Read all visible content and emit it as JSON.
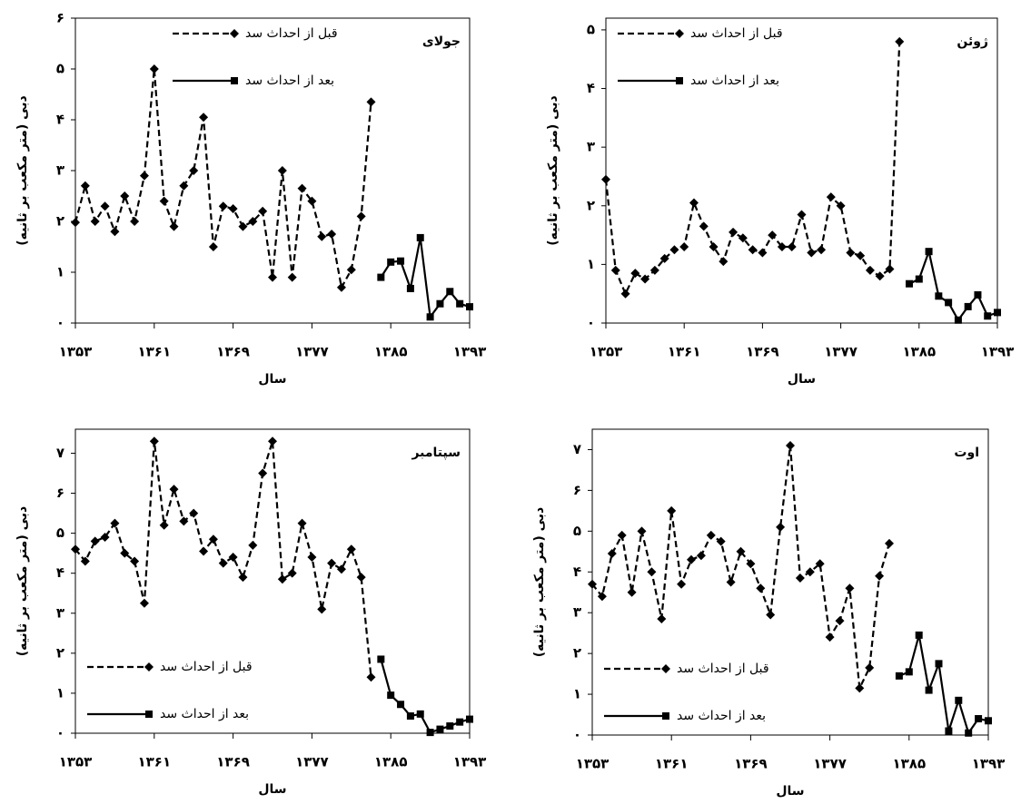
{
  "chart_data": [
    {
      "type": "line",
      "title": "جولای",
      "x_label": "سال",
      "y_label": "دبی (متر مکعب بر ثانیه)",
      "x": [
        1353,
        1354,
        1355,
        1356,
        1357,
        1358,
        1359,
        1360,
        1361,
        1362,
        1363,
        1364,
        1365,
        1366,
        1367,
        1368,
        1369,
        1370,
        1371,
        1372,
        1373,
        1374,
        1375,
        1376,
        1377,
        1378,
        1379,
        1380,
        1381,
        1382,
        1383,
        1384,
        1385,
        1386,
        1387,
        1388,
        1389,
        1390,
        1391,
        1392,
        1393
      ],
      "series": [
        {
          "name": "قبل از احداث سد",
          "color": "#000000",
          "style": "dashed",
          "marker": "diamond",
          "values": [
            1.98,
            2.7,
            2,
            2.3,
            1.8,
            2.5,
            2,
            2.9,
            5,
            2.4,
            1.9,
            2.7,
            3,
            4.05,
            1.5,
            2.3,
            2.25,
            1.9,
            2,
            2.2,
            0.9,
            3,
            0.9,
            2.65,
            2.4,
            1.7,
            1.75,
            0.7,
            1.05,
            2.1,
            4.35,
            null,
            null,
            null,
            null,
            null,
            null,
            null,
            null,
            null,
            null
          ]
        },
        {
          "name": "بعد از احداث سد",
          "color": "#000000",
          "style": "solid",
          "marker": "square",
          "values": [
            null,
            null,
            null,
            null,
            null,
            null,
            null,
            null,
            null,
            null,
            null,
            null,
            null,
            null,
            null,
            null,
            null,
            null,
            null,
            null,
            null,
            null,
            null,
            null,
            null,
            null,
            null,
            null,
            null,
            null,
            null,
            0.9,
            1.2,
            1.22,
            0.68,
            1.68,
            0.12,
            0.38,
            0.62,
            0.38,
            0.32
          ]
        }
      ],
      "xlim": [
        1353,
        1393
      ],
      "xticks": [
        {
          "value": 1353,
          "label": "۱۳۵۳"
        },
        {
          "value": 1361,
          "label": "۱۳۶۱"
        },
        {
          "value": 1369,
          "label": "۱۳۶۹"
        },
        {
          "value": 1377,
          "label": "۱۳۷۷"
        },
        {
          "value": 1385,
          "label": "۱۳۸۵"
        },
        {
          "value": 1393,
          "label": "۱۳۹۳"
        }
      ],
      "ylim": [
        0,
        6
      ],
      "yticks": [
        {
          "value": 0,
          "label": "۰"
        },
        {
          "value": 1,
          "label": "۱"
        },
        {
          "value": 2,
          "label": "۲"
        },
        {
          "value": 3,
          "label": "۳"
        },
        {
          "value": 4,
          "label": "۴"
        },
        {
          "value": 5,
          "label": "۵"
        },
        {
          "value": 6,
          "label": "۶"
        }
      ],
      "legend_position": "upper center"
    },
    {
      "type": "line",
      "title": "ژوئن",
      "x_label": "سال",
      "y_label": "دبی (متر مکعب بر ثانیه)",
      "x": [
        1353,
        1354,
        1355,
        1356,
        1357,
        1358,
        1359,
        1360,
        1361,
        1362,
        1363,
        1364,
        1365,
        1366,
        1367,
        1368,
        1369,
        1370,
        1371,
        1372,
        1373,
        1374,
        1375,
        1376,
        1377,
        1378,
        1379,
        1380,
        1381,
        1382,
        1383,
        1384,
        1385,
        1386,
        1387,
        1388,
        1389,
        1390,
        1391,
        1392,
        1393
      ],
      "series": [
        {
          "name": "قبل از احداث سد",
          "color": "#000000",
          "style": "dashed",
          "marker": "diamond",
          "values": [
            2.45,
            0.9,
            0.5,
            0.85,
            0.75,
            0.9,
            1.1,
            1.25,
            1.3,
            2.05,
            1.65,
            1.3,
            1.05,
            1.55,
            1.45,
            1.25,
            1.2,
            1.5,
            1.3,
            1.3,
            1.85,
            1.2,
            1.25,
            2.15,
            2,
            1.2,
            1.15,
            0.9,
            0.8,
            0.92,
            4.8,
            null,
            null,
            null,
            null,
            null,
            null,
            null,
            null,
            null,
            null
          ]
        },
        {
          "name": "بعد از احداث سد",
          "color": "#000000",
          "style": "solid",
          "marker": "square",
          "values": [
            null,
            null,
            null,
            null,
            null,
            null,
            null,
            null,
            null,
            null,
            null,
            null,
            null,
            null,
            null,
            null,
            null,
            null,
            null,
            null,
            null,
            null,
            null,
            null,
            null,
            null,
            null,
            null,
            null,
            null,
            null,
            0.67,
            0.75,
            1.22,
            0.46,
            0.35,
            0.05,
            0.28,
            0.48,
            0.12,
            0.18
          ]
        }
      ],
      "xlim": [
        1353,
        1393
      ],
      "xticks": [
        {
          "value": 1353,
          "label": "۱۳۵۳"
        },
        {
          "value": 1361,
          "label": "۱۳۶۱"
        },
        {
          "value": 1369,
          "label": "۱۳۶۹"
        },
        {
          "value": 1377,
          "label": "۱۳۷۷"
        },
        {
          "value": 1385,
          "label": "۱۳۸۵"
        },
        {
          "value": 1393,
          "label": "۱۳۹۳"
        }
      ],
      "ylim": [
        0,
        5.2
      ],
      "yticks": [
        {
          "value": 0,
          "label": "۰"
        },
        {
          "value": 1,
          "label": "۱"
        },
        {
          "value": 2,
          "label": "۲"
        },
        {
          "value": 3,
          "label": "۳"
        },
        {
          "value": 4,
          "label": "۴"
        },
        {
          "value": 5,
          "label": "۵"
        }
      ],
      "legend_position": "upper left"
    },
    {
      "type": "line",
      "title": "سپتامبر",
      "x_label": "سال",
      "y_label": "دبی (متر مکعب بر ثانیه)",
      "x": [
        1353,
        1354,
        1355,
        1356,
        1357,
        1358,
        1359,
        1360,
        1361,
        1362,
        1363,
        1364,
        1365,
        1366,
        1367,
        1368,
        1369,
        1370,
        1371,
        1372,
        1373,
        1374,
        1375,
        1376,
        1377,
        1378,
        1379,
        1380,
        1381,
        1382,
        1383,
        1384,
        1385,
        1386,
        1387,
        1388,
        1389,
        1390,
        1391,
        1392,
        1393
      ],
      "series": [
        {
          "name": "قبل از احداث سد",
          "color": "#000000",
          "style": "dashed",
          "marker": "diamond",
          "values": [
            4.6,
            4.3,
            4.8,
            4.9,
            5.25,
            4.5,
            4.3,
            3.25,
            7.3,
            5.2,
            6.1,
            5.3,
            5.5,
            4.55,
            4.85,
            4.25,
            4.4,
            3.9,
            4.7,
            6.5,
            7.3,
            3.85,
            4,
            5.25,
            4.4,
            3.1,
            4.25,
            4.1,
            4.6,
            3.9,
            1.4,
            null,
            null,
            null,
            null,
            null,
            null,
            null,
            null,
            null,
            null
          ]
        },
        {
          "name": "بعد از احداث سد",
          "color": "#000000",
          "style": "solid",
          "marker": "square",
          "values": [
            null,
            null,
            null,
            null,
            null,
            null,
            null,
            null,
            null,
            null,
            null,
            null,
            null,
            null,
            null,
            null,
            null,
            null,
            null,
            null,
            null,
            null,
            null,
            null,
            null,
            null,
            null,
            null,
            null,
            null,
            null,
            1.85,
            0.95,
            0.72,
            0.43,
            0.48,
            0.02,
            0.1,
            0.18,
            0.28,
            0.35
          ]
        }
      ],
      "xlim": [
        1353,
        1393
      ],
      "xticks": [
        {
          "value": 1353,
          "label": "۱۳۵۳"
        },
        {
          "value": 1361,
          "label": "۱۳۶۱"
        },
        {
          "value": 1369,
          "label": "۱۳۶۹"
        },
        {
          "value": 1377,
          "label": "۱۳۷۷"
        },
        {
          "value": 1385,
          "label": "۱۳۸۵"
        },
        {
          "value": 1393,
          "label": "۱۳۹۳"
        }
      ],
      "ylim": [
        0,
        7.6
      ],
      "yticks": [
        {
          "value": 0,
          "label": "۰"
        },
        {
          "value": 1,
          "label": "۱"
        },
        {
          "value": 2,
          "label": "۲"
        },
        {
          "value": 3,
          "label": "۳"
        },
        {
          "value": 4,
          "label": "۴"
        },
        {
          "value": 5,
          "label": "۵"
        },
        {
          "value": 6,
          "label": "۶"
        },
        {
          "value": 7,
          "label": "۷"
        }
      ],
      "legend_position": "lower left"
    },
    {
      "type": "line",
      "title": "اوت",
      "x_label": "سال",
      "y_label": "دبی (متر مکعب بر ثانیه)",
      "x": [
        1353,
        1354,
        1355,
        1356,
        1357,
        1358,
        1359,
        1360,
        1361,
        1362,
        1363,
        1364,
        1365,
        1366,
        1367,
        1368,
        1369,
        1370,
        1371,
        1372,
        1373,
        1374,
        1375,
        1376,
        1377,
        1378,
        1379,
        1380,
        1381,
        1382,
        1383,
        1384,
        1385,
        1386,
        1387,
        1388,
        1389,
        1390,
        1391,
        1392,
        1393
      ],
      "series": [
        {
          "name": "قبل از احداث سد",
          "color": "#000000",
          "style": "dashed",
          "marker": "diamond",
          "values": [
            3.7,
            3.4,
            4.45,
            4.9,
            3.5,
            5,
            4,
            2.85,
            5.5,
            3.7,
            4.3,
            4.4,
            4.9,
            4.75,
            3.75,
            4.5,
            4.2,
            3.6,
            2.95,
            5.1,
            7.1,
            3.85,
            4,
            4.2,
            2.4,
            2.8,
            3.6,
            1.15,
            1.65,
            3.9,
            4.7,
            null,
            null,
            null,
            null,
            null,
            null,
            null,
            null,
            null,
            null
          ]
        },
        {
          "name": "بعد از احداث سد",
          "color": "#000000",
          "style": "solid",
          "marker": "square",
          "values": [
            null,
            null,
            null,
            null,
            null,
            null,
            null,
            null,
            null,
            null,
            null,
            null,
            null,
            null,
            null,
            null,
            null,
            null,
            null,
            null,
            null,
            null,
            null,
            null,
            null,
            null,
            null,
            null,
            null,
            null,
            null,
            1.45,
            1.55,
            2.45,
            1.1,
            1.75,
            0.1,
            0.85,
            0.05,
            0.4,
            0.35
          ]
        }
      ],
      "xlim": [
        1353,
        1393
      ],
      "xticks": [
        {
          "value": 1353,
          "label": "۱۳۵۳"
        },
        {
          "value": 1361,
          "label": "۱۳۶۱"
        },
        {
          "value": 1369,
          "label": "۱۳۶۹"
        },
        {
          "value": 1377,
          "label": "۱۳۷۷"
        },
        {
          "value": 1385,
          "label": "۱۳۸۵"
        },
        {
          "value": 1393,
          "label": "۱۳۹۳"
        }
      ],
      "ylim": [
        0,
        7.5
      ],
      "yticks": [
        {
          "value": 0,
          "label": "۰"
        },
        {
          "value": 1,
          "label": "۱"
        },
        {
          "value": 2,
          "label": "۲"
        },
        {
          "value": 3,
          "label": "۳"
        },
        {
          "value": 4,
          "label": "۴"
        },
        {
          "value": 5,
          "label": "۵"
        },
        {
          "value": 6,
          "label": "۶"
        },
        {
          "value": 7,
          "label": "۷"
        }
      ],
      "legend_position": "lower left"
    }
  ]
}
